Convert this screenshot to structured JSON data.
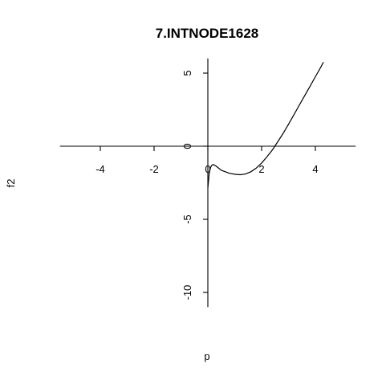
{
  "chart_data": {
    "type": "line",
    "title": "7.INTNODE1628",
    "xlabel": "p",
    "ylabel": "f2",
    "xlim": [
      -5.5,
      5.5
    ],
    "ylim": [
      -11,
      6
    ],
    "x_ticks": [
      -4,
      -2,
      0,
      2,
      4
    ],
    "y_ticks": [
      -10,
      -5,
      0,
      5
    ],
    "axes_through_origin": true,
    "grid": false,
    "series": [
      {
        "x": [
          0.0,
          0.05,
          0.1,
          0.15,
          0.2,
          0.3,
          0.5,
          0.8,
          1.0,
          1.2,
          1.4,
          1.6,
          1.8,
          2.0,
          2.2,
          2.4,
          2.6,
          2.8,
          3.0,
          3.2,
          3.4,
          3.6,
          3.8,
          4.0,
          4.2,
          4.3
        ],
        "y": [
          -2.85,
          -1.85,
          -1.45,
          -1.3,
          -1.25,
          -1.35,
          -1.65,
          -1.85,
          -1.92,
          -1.95,
          -1.9,
          -1.75,
          -1.5,
          -1.15,
          -0.72,
          -0.25,
          0.3,
          0.88,
          1.5,
          2.15,
          2.8,
          3.45,
          4.1,
          4.75,
          5.4,
          5.75
        ]
      }
    ]
  }
}
